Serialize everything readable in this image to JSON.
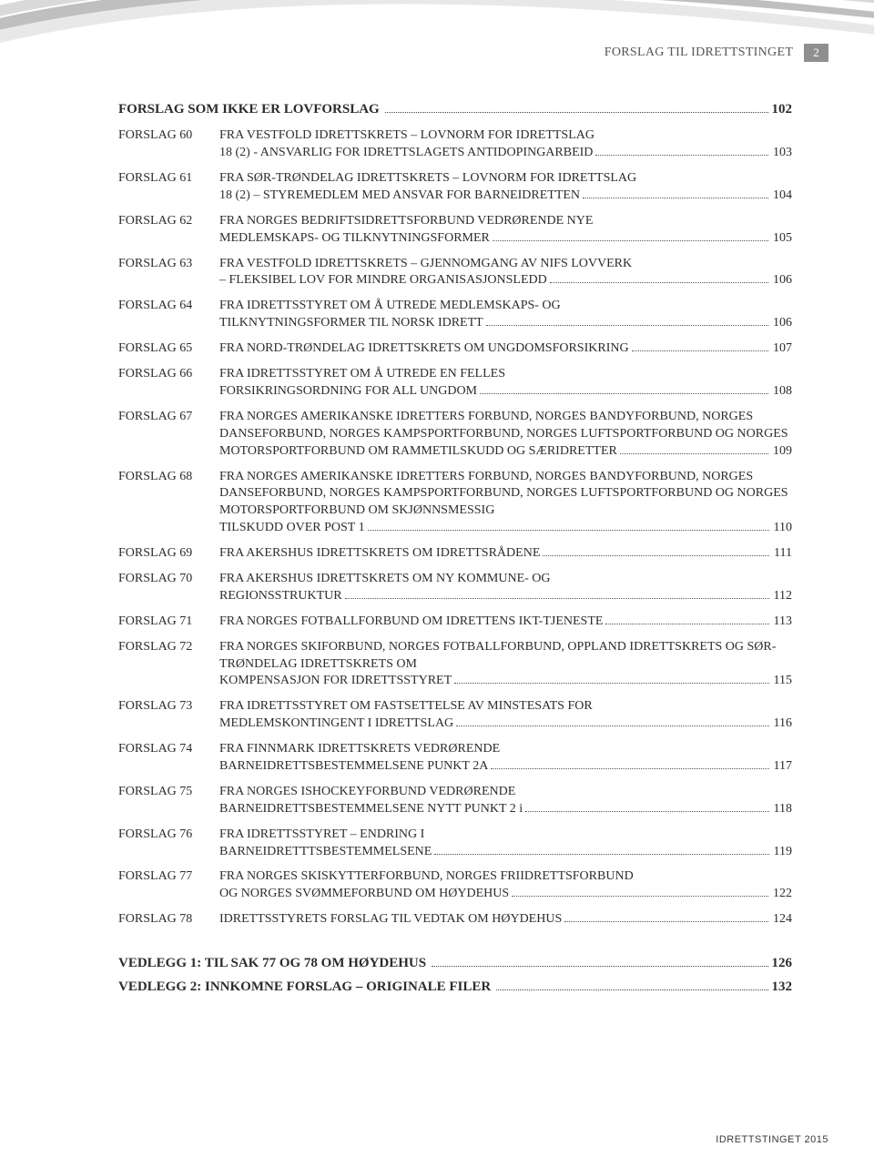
{
  "header": {
    "running": "FORSLAG TIL IDRETTSTINGET",
    "pagenum": "2"
  },
  "section": {
    "title": "FORSLAG SOM IKKE ER LOVFORSLAG",
    "page": "102"
  },
  "entries": [
    {
      "label": "FORSLAG 60",
      "pre": "FRA VESTFOLD IDRETTSKRETS – LOVNORM FOR IDRETTSLAG",
      "last": "18 (2) - ANSVARLIG FOR IDRETTSLAGETS ANTIDOPINGARBEID",
      "page": "103"
    },
    {
      "label": "FORSLAG 61",
      "pre": "FRA SØR-TRØNDELAG IDRETTSKRETS – LOVNORM FOR IDRETTSLAG",
      "last": "18 (2) – STYREMEDLEM MED ANSVAR FOR BARNEIDRETTEN",
      "page": "104"
    },
    {
      "label": "FORSLAG 62",
      "pre": "FRA NORGES BEDRIFTSIDRETTSFORBUND VEDRØRENDE NYE",
      "last": "MEDLEMSKAPS- OG TILKNYTNINGSFORMER",
      "page": "105"
    },
    {
      "label": "FORSLAG 63",
      "pre": "FRA VESTFOLD IDRETTSKRETS – GJENNOMGANG AV NIFS LOVVERK",
      "last": "– FLEKSIBEL LOV FOR MINDRE ORGANISASJONSLEDD",
      "page": "106"
    },
    {
      "label": "FORSLAG 64",
      "pre": "FRA IDRETTSSTYRET OM Å UTREDE MEDLEMSKAPS- OG",
      "last": "TILKNYTNINGSFORMER TIL NORSK IDRETT",
      "page": "106"
    },
    {
      "label": "FORSLAG 65",
      "pre": "",
      "last": "FRA NORD-TRØNDELAG IDRETTSKRETS OM UNGDOMSFORSIKRING",
      "page": "107"
    },
    {
      "label": "FORSLAG 66",
      "pre": "FRA IDRETTSSTYRET OM Å UTREDE EN FELLES",
      "last": "FORSIKRINGSORDNING FOR ALL UNGDOM",
      "page": "108"
    },
    {
      "label": "FORSLAG 67",
      "pre": "FRA NORGES AMERIKANSKE IDRETTERS FORBUND, NORGES BANDYFORBUND, NORGES DANSEFORBUND, NORGES KAMPSPORTFORBUND, NORGES LUFTSPORTFORBUND OG NORGES",
      "last": "MOTORSPORTFORBUND OM RAMMETILSKUDD OG SÆRIDRETTER",
      "page": "109"
    },
    {
      "label": "FORSLAG 68",
      "pre": "FRA NORGES AMERIKANSKE IDRETTERS FORBUND, NORGES BANDYFORBUND, NORGES DANSEFORBUND, NORGES KAMPSPORTFORBUND, NORGES LUFTSPORTFORBUND OG NORGES MOTORSPORTFORBUND OM SKJØNNSMESSIG",
      "last": "TILSKUDD OVER POST 1",
      "page": "110"
    },
    {
      "label": "FORSLAG 69",
      "pre": "",
      "last": "FRA AKERSHUS IDRETTSKRETS OM IDRETTSRÅDENE",
      "page": "111"
    },
    {
      "label": "FORSLAG 70",
      "pre": "FRA AKERSHUS IDRETTSKRETS OM NY KOMMUNE- OG",
      "last": "REGIONSSTRUKTUR",
      "page": "112"
    },
    {
      "label": "FORSLAG 71",
      "pre": "",
      "last": "FRA NORGES FOTBALLFORBUND OM IDRETTENS IKT-TJENESTE",
      "page": "113"
    },
    {
      "label": "FORSLAG 72",
      "pre": "FRA NORGES SKIFORBUND, NORGES FOTBALLFORBUND, OPPLAND IDRETTSKRETS OG SØR-TRØNDELAG IDRETTSKRETS OM",
      "last": "KOMPENSASJON FOR IDRETTSSTYRET",
      "page": "115"
    },
    {
      "label": "FORSLAG 73",
      "pre": "FRA IDRETTSSTYRET OM FASTSETTELSE AV MINSTESATS FOR",
      "last": "MEDLEMSKONTINGENT I IDRETTSLAG",
      "page": "116"
    },
    {
      "label": "FORSLAG 74",
      "pre": "FRA FINNMARK IDRETTSKRETS VEDRØRENDE",
      "last": "BARNEIDRETTSBESTEMMELSENE PUNKT 2A",
      "page": "117"
    },
    {
      "label": "FORSLAG 75",
      "pre": "FRA NORGES ISHOCKEYFORBUND VEDRØRENDE",
      "last": "BARNEIDRETTSBESTEMMELSENE NYTT PUNKT 2 i",
      "page": "118"
    },
    {
      "label": "FORSLAG 76",
      "pre": "FRA IDRETTSSTYRET – ENDRING I",
      "last": "BARNEIDRETTTSBESTEMMELSENE",
      "page": "119"
    },
    {
      "label": "FORSLAG 77",
      "pre": "FRA NORGES SKISKYTTERFORBUND, NORGES FRIIDRETTSFORBUND",
      "last": "OG NORGES SVØMMEFORBUND OM HØYDEHUS",
      "page": "122"
    },
    {
      "label": "FORSLAG 78",
      "pre": "",
      "last": "IDRETTSSTYRETS FORSLAG TIL VEDTAK OM HØYDEHUS",
      "page": "124"
    }
  ],
  "vedlegg": [
    {
      "title": "VEDLEGG 1: TIL SAK 77 OG 78 OM HØYDEHUS",
      "page": "126"
    },
    {
      "title": "VEDLEGG 2: INNKOMNE FORSLAG – ORIGINALE FILER",
      "page": "132"
    }
  ],
  "footer": "IDRETTSTINGET 2015",
  "colors": {
    "text": "#2c2c2c",
    "headerbox": "#8f8f8f",
    "swoosh1": "#d9d9d9",
    "swoosh2": "#bfbfbf",
    "swoosh3": "#e8e8e8"
  }
}
